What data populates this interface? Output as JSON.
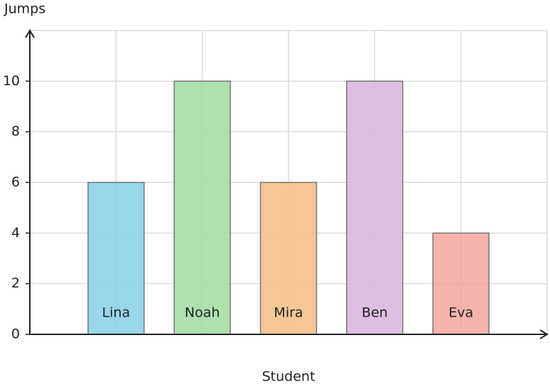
{
  "chart_data": {
    "type": "bar",
    "x_label": "Student",
    "y_label": "Jumps",
    "categories": [
      "Lina",
      "Noah",
      "Mira",
      "Ben",
      "Eva"
    ],
    "values": [
      6,
      10,
      6,
      10,
      4
    ],
    "colors": [
      "#87d0e8",
      "#a0dca0",
      "#f3bd84",
      "#d8b4dc",
      "#f4a49c"
    ],
    "ylim": [
      0,
      12
    ],
    "yticks": [
      0,
      2,
      4,
      6,
      8,
      10
    ],
    "grid": true
  }
}
